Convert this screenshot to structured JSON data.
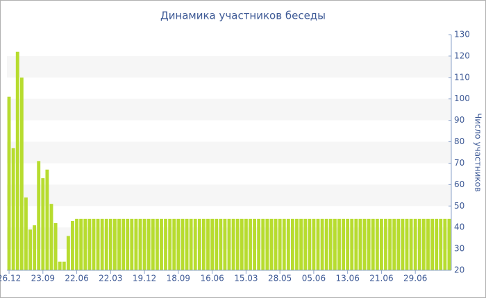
{
  "chart_data": {
    "type": "bar",
    "title": "Динамика участников беседы",
    "y_axis_label": "Число участников",
    "categories": [
      "26.12",
      null,
      null,
      null,
      null,
      null,
      null,
      null,
      "23.09",
      null,
      null,
      null,
      null,
      null,
      null,
      null,
      "22.06",
      null,
      null,
      null,
      null,
      null,
      null,
      null,
      "22.03",
      null,
      null,
      null,
      null,
      null,
      null,
      null,
      "19.12",
      null,
      null,
      null,
      null,
      null,
      null,
      null,
      "18.09",
      null,
      null,
      null,
      null,
      null,
      null,
      null,
      "16.06",
      null,
      null,
      null,
      null,
      null,
      null,
      null,
      "15.03",
      null,
      null,
      null,
      null,
      null,
      null,
      null,
      "28.05",
      null,
      null,
      null,
      null,
      null,
      null,
      null,
      "05.06",
      null,
      null,
      null,
      null,
      null,
      null,
      null,
      "13.06",
      null,
      null,
      null,
      null,
      null,
      null,
      null,
      "21.06",
      null,
      null,
      null,
      null,
      null,
      null,
      null,
      "29.06",
      null,
      null,
      null,
      null,
      null,
      null,
      null,
      null
    ],
    "values": [
      101,
      77,
      122,
      110,
      54,
      39,
      41,
      71,
      63,
      67,
      51,
      42,
      24,
      24,
      36,
      43,
      44,
      44,
      44,
      44,
      44,
      44,
      44,
      44,
      44,
      44,
      44,
      44,
      44,
      44,
      44,
      44,
      44,
      44,
      44,
      44,
      44,
      44,
      44,
      44,
      44,
      44,
      44,
      44,
      44,
      44,
      44,
      44,
      44,
      44,
      44,
      44,
      44,
      44,
      44,
      44,
      44,
      44,
      44,
      44,
      44,
      44,
      44,
      44,
      44,
      44,
      44,
      44,
      44,
      44,
      44,
      44,
      44,
      44,
      44,
      44,
      44,
      44,
      44,
      44,
      44,
      44,
      44,
      44,
      44,
      44,
      44,
      44,
      44,
      44,
      44,
      44,
      44,
      44,
      44,
      44,
      44,
      44,
      44,
      44,
      44,
      44,
      44,
      44,
      44
    ],
    "color": "#b7dc2f",
    "ylim": [
      20,
      130
    ],
    "yticks": [
      20,
      30,
      40,
      50,
      60,
      70,
      80,
      90,
      100,
      110,
      120,
      130
    ],
    "grid": true,
    "y_axis_side": "right"
  }
}
